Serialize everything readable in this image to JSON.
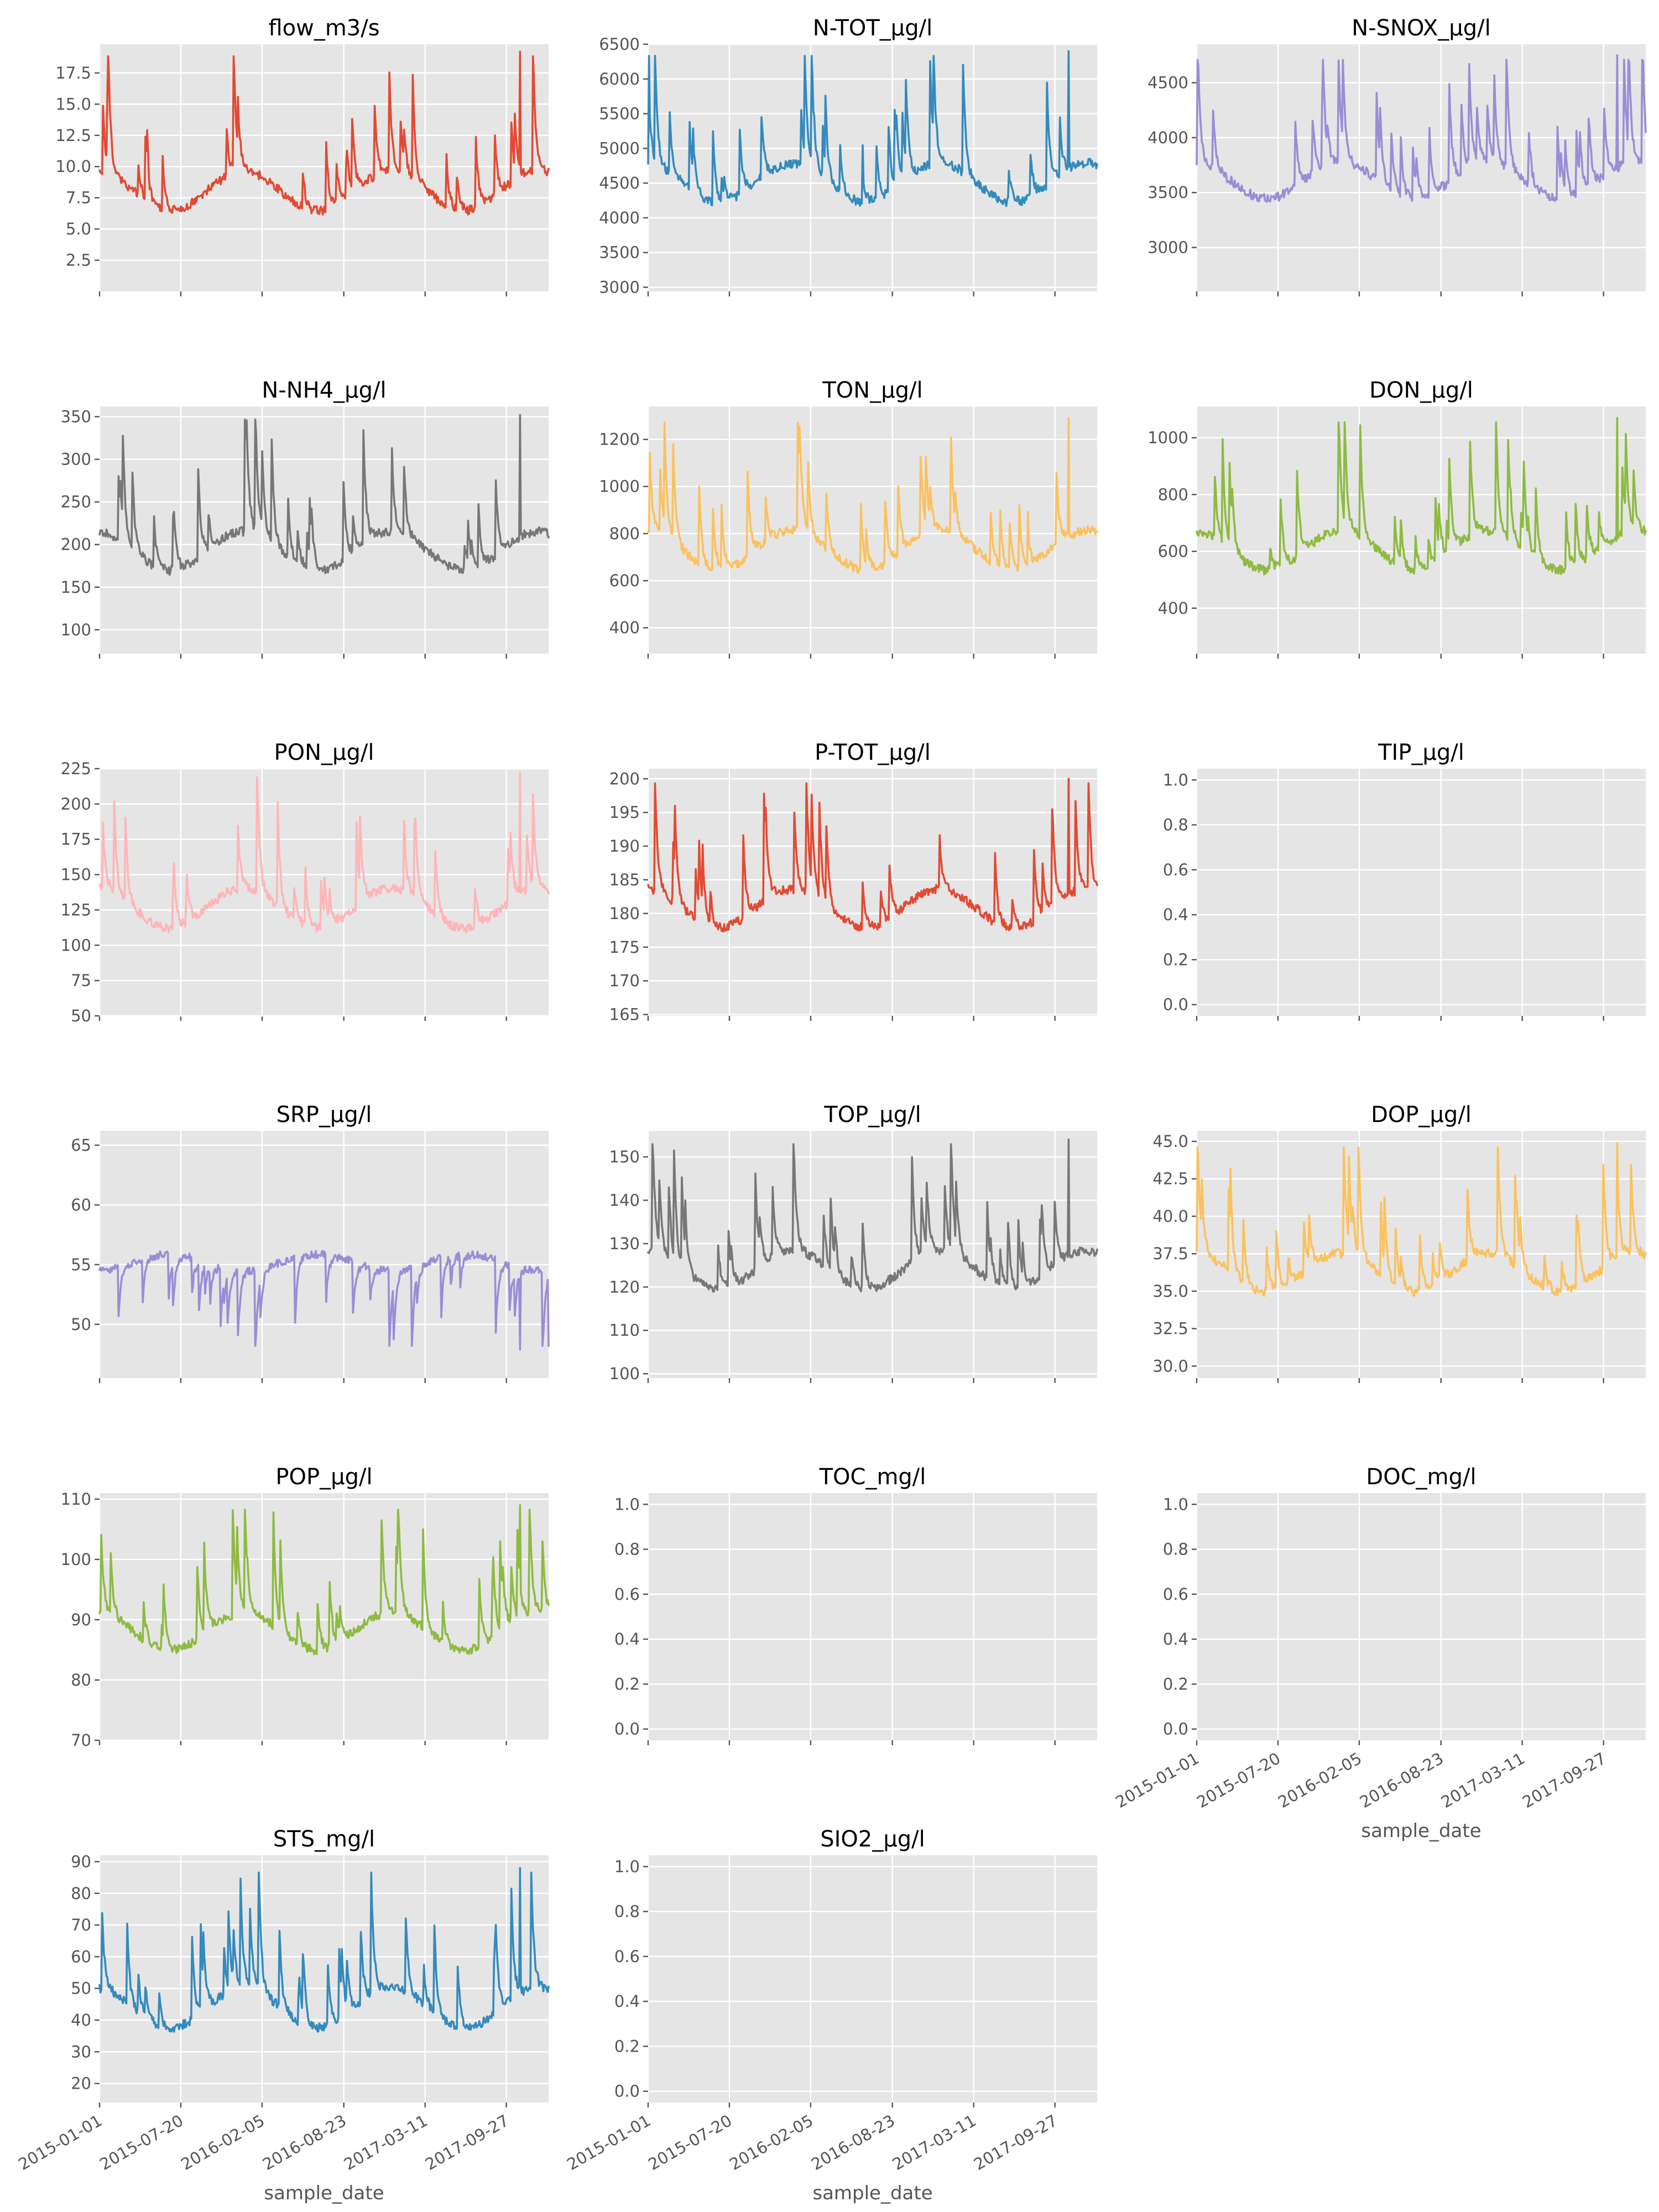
{
  "chart_data": {
    "type": "line",
    "layout": "small-multiples",
    "x_axis": {
      "label": "sample_date",
      "tick_labels": [
        "2015-01-01",
        "2015-07-20",
        "2016-02-05",
        "2016-08-23",
        "2017-03-11",
        "2017-09-27"
      ],
      "range": [
        "2015-01-01",
        "2018-01-15"
      ]
    },
    "grid": true,
    "style": "ggplot",
    "panels": [
      {
        "title": "flow_m3/s",
        "color": "#E24A33",
        "ylim": [
          0.0,
          19.8
        ],
        "yticks": [
          "2.5",
          "5.0",
          "7.5",
          "10.0",
          "12.5",
          "15.0",
          "17.5"
        ],
        "base": 0.3,
        "amplitude": 0.62,
        "hi": 10.8,
        "lo": 1.0,
        "peak": 19.2,
        "seed": 1
      },
      {
        "title": "N-TOT_µg/l",
        "color": "#348ABD",
        "ylim": [
          2940,
          6500
        ],
        "yticks": [
          "3000",
          "3500",
          "4000",
          "4500",
          "5000",
          "5500",
          "6000",
          "6500"
        ],
        "base": 0.35,
        "amplitude": 0.6,
        "hi": 5550,
        "lo": 3050,
        "peak": 6400,
        "seed": 2
      },
      {
        "title": "N-SNOX_µg/l",
        "color": "#988ED5",
        "ylim": [
          2600,
          4850
        ],
        "yticks": [
          "3000",
          "3500",
          "4000",
          "4500"
        ],
        "base": 0.38,
        "amplitude": 0.55,
        "hi": 4250,
        "lo": 2650,
        "peak": 4750,
        "seed": 3
      },
      {
        "title": "N-NH4_µg/l",
        "color": "#777777",
        "ylim": [
          72,
          362
        ],
        "yticks": [
          "100",
          "150",
          "200",
          "250",
          "300",
          "350"
        ],
        "base": 0.33,
        "amplitude": 0.6,
        "hi": 265,
        "lo": 80,
        "peak": 352,
        "seed": 4
      },
      {
        "title": "TON_µg/l",
        "color": "#FBC15E",
        "ylim": [
          290,
          1340
        ],
        "yticks": [
          "400",
          "600",
          "800",
          "1000",
          "1200"
        ],
        "base": 0.33,
        "amplitude": 0.62,
        "hi": 1040,
        "lo": 330,
        "peak": 1290,
        "seed": 5
      },
      {
        "title": "DON_µg/l",
        "color": "#8EBA42",
        "ylim": [
          240,
          1110
        ],
        "yticks": [
          "400",
          "600",
          "800",
          "1000"
        ],
        "base": 0.33,
        "amplitude": 0.62,
        "hi": 860,
        "lo": 270,
        "peak": 1070,
        "seed": 6
      },
      {
        "title": "PON_µg/l",
        "color": "#FFB5B8",
        "ylim": [
          50,
          225
        ],
        "yticks": [
          "50",
          "75",
          "100",
          "125",
          "150",
          "175",
          "200",
          "225"
        ],
        "base": 0.33,
        "amplitude": 0.62,
        "hi": 178,
        "lo": 58,
        "peak": 222,
        "seed": 7
      },
      {
        "title": "P-TOT_µg/l",
        "color": "#E24A33",
        "ylim": [
          164.8,
          201.5
        ],
        "yticks": [
          "165",
          "170",
          "175",
          "180",
          "185",
          "190",
          "195",
          "200"
        ],
        "base": 0.35,
        "amplitude": 0.6,
        "hi": 193,
        "lo": 166,
        "peak": 200,
        "seed": 8
      },
      {
        "title": "TIP_µg/l",
        "color": "#348ABD",
        "ylim": [
          -0.05,
          1.05
        ],
        "yticks": [
          "0.0",
          "0.2",
          "0.4",
          "0.6",
          "0.8",
          "1.0"
        ],
        "empty": true
      },
      {
        "title": "SRP_µg/l",
        "color": "#988ED5",
        "ylim": [
          45.5,
          66.2
        ],
        "yticks": [
          "50",
          "55",
          "60",
          "65"
        ],
        "base": 0.5,
        "amplitude": -0.3,
        "hi": 54,
        "lo": 46,
        "peak": 64.8,
        "seed": 9,
        "inverted": true
      },
      {
        "title": "TOP_µg/l",
        "color": "#777777",
        "ylim": [
          99,
          156
        ],
        "yticks": [
          "100",
          "110",
          "120",
          "130",
          "140",
          "150"
        ],
        "base": 0.35,
        "amplitude": 0.6,
        "hi": 143,
        "lo": 101,
        "peak": 154,
        "seed": 10
      },
      {
        "title": "DOP_µg/l",
        "color": "#FBC15E",
        "ylim": [
          29.2,
          45.7
        ],
        "yticks": [
          "30.0",
          "32.5",
          "35.0",
          "37.5",
          "40.0",
          "42.5",
          "45.0"
        ],
        "base": 0.35,
        "amplitude": 0.6,
        "hi": 42,
        "lo": 29.6,
        "peak": 44.9,
        "seed": 11
      },
      {
        "title": "POP_µg/l",
        "color": "#8EBA42",
        "ylim": [
          70,
          111
        ],
        "yticks": [
          "70",
          "80",
          "90",
          "100",
          "110"
        ],
        "base": 0.35,
        "amplitude": 0.6,
        "hi": 102,
        "lo": 72,
        "peak": 109,
        "seed": 12
      },
      {
        "title": "TOC_mg/l",
        "color": "#FFB5B8",
        "ylim": [
          -0.05,
          1.05
        ],
        "yticks": [
          "0.0",
          "0.2",
          "0.4",
          "0.6",
          "0.8",
          "1.0"
        ],
        "empty": true
      },
      {
        "title": "DOC_mg/l",
        "color": "#E24A33",
        "ylim": [
          -0.05,
          1.05
        ],
        "yticks": [
          "0.0",
          "0.2",
          "0.4",
          "0.6",
          "0.8",
          "1.0"
        ],
        "empty": true,
        "show_xticklabels": true
      },
      {
        "title": "STS_mg/l",
        "color": "#348ABD",
        "ylim": [
          14,
          92
        ],
        "yticks": [
          "20",
          "30",
          "40",
          "50",
          "60",
          "70",
          "80",
          "90"
        ],
        "base": 0.3,
        "amplitude": 0.62,
        "hi": 63,
        "lo": 16,
        "peak": 88,
        "seed": 13,
        "show_xticklabels": true
      },
      {
        "title": "SIO2_µg/l",
        "color": "#988ED5",
        "ylim": [
          -0.05,
          1.05
        ],
        "yticks": [
          "0.0",
          "0.2",
          "0.4",
          "0.6",
          "0.8",
          "1.0"
        ],
        "empty": true,
        "show_xticklabels": true
      }
    ]
  }
}
